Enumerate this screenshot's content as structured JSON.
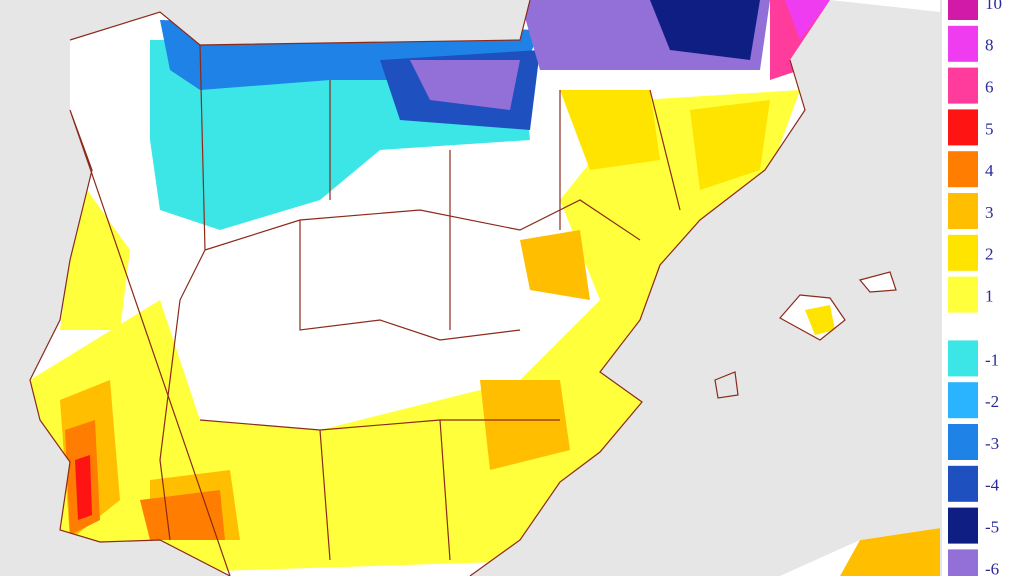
{
  "legend": {
    "items": [
      {
        "label": "10",
        "color": "#d21aa8"
      },
      {
        "label": "8",
        "color": "#f03cf0"
      },
      {
        "label": "6",
        "color": "#ff3c9c"
      },
      {
        "label": "5",
        "color": "#ff1414"
      },
      {
        "label": "4",
        "color": "#ff7d00"
      },
      {
        "label": "3",
        "color": "#ffbf00"
      },
      {
        "label": "2",
        "color": "#ffe400"
      },
      {
        "label": "1",
        "color": "#ffff3c"
      },
      {
        "label": "-1",
        "color": "#3ce6e6"
      },
      {
        "label": "-2",
        "color": "#2ab4ff"
      },
      {
        "label": "-3",
        "color": "#1e82e6"
      },
      {
        "label": "-4",
        "color": "#1e50c0"
      },
      {
        "label": "-5",
        "color": "#0f1e82"
      },
      {
        "label": "-6",
        "color": "#9370d8"
      }
    ]
  }
}
